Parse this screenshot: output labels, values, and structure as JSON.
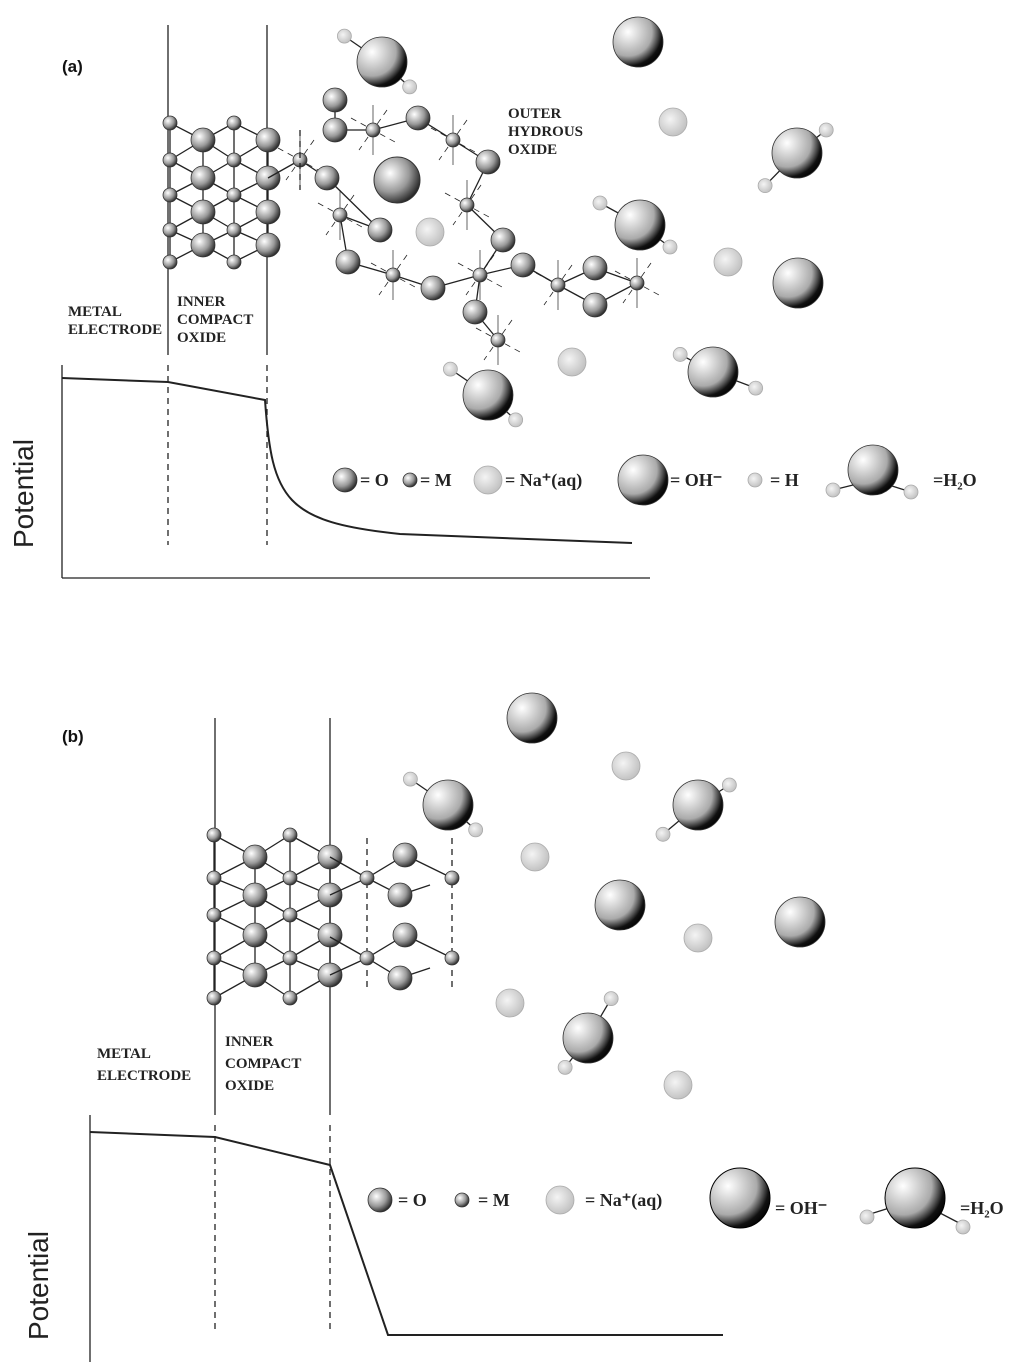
{
  "panels": [
    {
      "label": "(a)",
      "regions": [
        [
          "METAL",
          "ELECTRODE"
        ],
        [
          "INNER",
          "COMPACT",
          "OXIDE"
        ],
        [
          "OUTER",
          "HYDROUS",
          "OXIDE"
        ]
      ],
      "axis_label": "Potential",
      "legend": [
        "= O",
        "= M",
        "= Na⁺(aq)",
        "= OH⁻",
        "= H",
        "=H₂O"
      ]
    },
    {
      "label": "(b)",
      "regions": [
        [
          "METAL",
          "ELECTRODE"
        ],
        [
          "INNER",
          "COMPACT",
          "OXIDE"
        ]
      ],
      "axis_label": "Potential",
      "legend": [
        "= O",
        "= M",
        "= Na⁺(aq)",
        "= OH⁻",
        "=H₂O"
      ]
    }
  ]
}
